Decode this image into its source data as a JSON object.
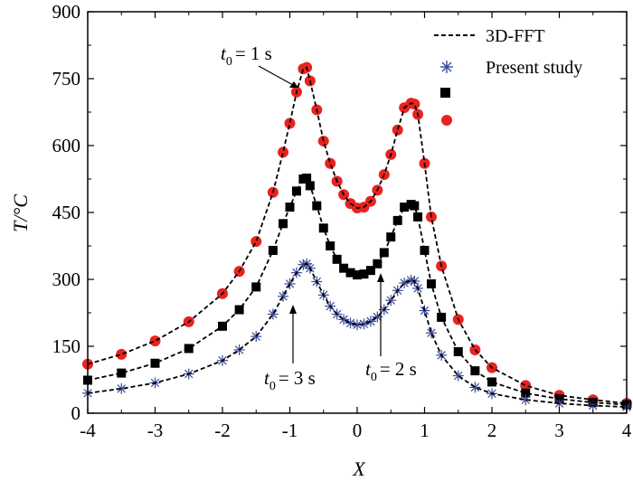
{
  "chart_data": {
    "type": "scatter",
    "xlabel": "X",
    "ylabel": "T/°C",
    "xlim": [
      -4,
      4
    ],
    "ylim": [
      0,
      900
    ],
    "xticks": [
      -4,
      -3,
      -2,
      -1,
      0,
      1,
      2,
      3,
      4
    ],
    "yticks": [
      0,
      150,
      300,
      450,
      600,
      750,
      900
    ],
    "grid": false,
    "legend_position": "top-right",
    "legend": [
      {
        "label": "3D-FFT",
        "style": "dashed-line",
        "color": "#000000"
      },
      {
        "label": "Present study",
        "style": "asterisk",
        "color": "#3a4a9c"
      },
      {
        "label": "",
        "style": "square",
        "color": "#000000"
      },
      {
        "label": "",
        "style": "circle",
        "color": "#e8231f"
      }
    ],
    "series": [
      {
        "time": "t0 = 1 s",
        "marker": "circle",
        "color": "#e8231f",
        "x": [
          -4,
          -3.5,
          -3,
          -2.5,
          -2,
          -1.75,
          -1.5,
          -1.25,
          -1.1,
          -1,
          -0.9,
          -0.8,
          -0.75,
          -0.7,
          -0.6,
          -0.5,
          -0.4,
          -0.3,
          -0.2,
          -0.1,
          0,
          0.1,
          0.2,
          0.3,
          0.4,
          0.5,
          0.6,
          0.7,
          0.8,
          0.85,
          0.9,
          1,
          1.1,
          1.25,
          1.5,
          1.75,
          2,
          2.5,
          3,
          3.5,
          4
        ],
        "y": [
          110,
          132,
          162,
          205,
          268,
          318,
          385,
          495,
          585,
          650,
          720,
          772,
          775,
          745,
          680,
          610,
          560,
          520,
          490,
          470,
          460,
          462,
          475,
          500,
          535,
          580,
          635,
          685,
          695,
          693,
          670,
          560,
          440,
          330,
          210,
          142,
          102,
          62,
          40,
          30,
          22
        ]
      },
      {
        "time": "t0 = 2 s",
        "marker": "square",
        "color": "#000000",
        "x": [
          -4,
          -3.5,
          -3,
          -2.5,
          -2,
          -1.75,
          -1.5,
          -1.25,
          -1.1,
          -1,
          -0.9,
          -0.8,
          -0.75,
          -0.7,
          -0.6,
          -0.5,
          -0.4,
          -0.3,
          -0.2,
          -0.1,
          0,
          0.1,
          0.2,
          0.3,
          0.4,
          0.5,
          0.6,
          0.7,
          0.8,
          0.85,
          0.9,
          1,
          1.1,
          1.25,
          1.5,
          1.75,
          2,
          2.5,
          3,
          3.5,
          4
        ],
        "y": [
          74,
          90,
          112,
          145,
          195,
          232,
          283,
          365,
          425,
          462,
          498,
          525,
          527,
          510,
          465,
          415,
          375,
          345,
          325,
          315,
          310,
          312,
          320,
          335,
          360,
          395,
          432,
          462,
          468,
          465,
          440,
          365,
          290,
          215,
          138,
          95,
          70,
          45,
          32,
          24,
          19
        ]
      },
      {
        "time": "t0 = 3 s",
        "marker": "asterisk",
        "color": "#3a4a9c",
        "x": [
          -4,
          -3.5,
          -3,
          -2.5,
          -2,
          -1.75,
          -1.5,
          -1.25,
          -1.1,
          -1,
          -0.9,
          -0.8,
          -0.75,
          -0.7,
          -0.6,
          -0.5,
          -0.4,
          -0.3,
          -0.2,
          -0.1,
          0,
          0.1,
          0.2,
          0.3,
          0.4,
          0.5,
          0.6,
          0.7,
          0.8,
          0.85,
          0.9,
          1,
          1.1,
          1.25,
          1.5,
          1.75,
          2,
          2.5,
          3,
          3.5,
          4
        ],
        "y": [
          45,
          55,
          68,
          88,
          118,
          142,
          172,
          222,
          262,
          290,
          315,
          333,
          335,
          325,
          295,
          265,
          240,
          222,
          210,
          202,
          198,
          200,
          206,
          216,
          232,
          253,
          275,
          292,
          298,
          296,
          280,
          230,
          180,
          130,
          84,
          58,
          44,
          30,
          22,
          17,
          14
        ]
      }
    ],
    "annotations": [
      {
        "main": "t",
        "sub": "0",
        "rest": "= 1 s"
      },
      {
        "main": "t",
        "sub": "0",
        "rest": "= 2 s"
      },
      {
        "main": "t",
        "sub": "0",
        "rest": "= 3 s"
      }
    ]
  }
}
